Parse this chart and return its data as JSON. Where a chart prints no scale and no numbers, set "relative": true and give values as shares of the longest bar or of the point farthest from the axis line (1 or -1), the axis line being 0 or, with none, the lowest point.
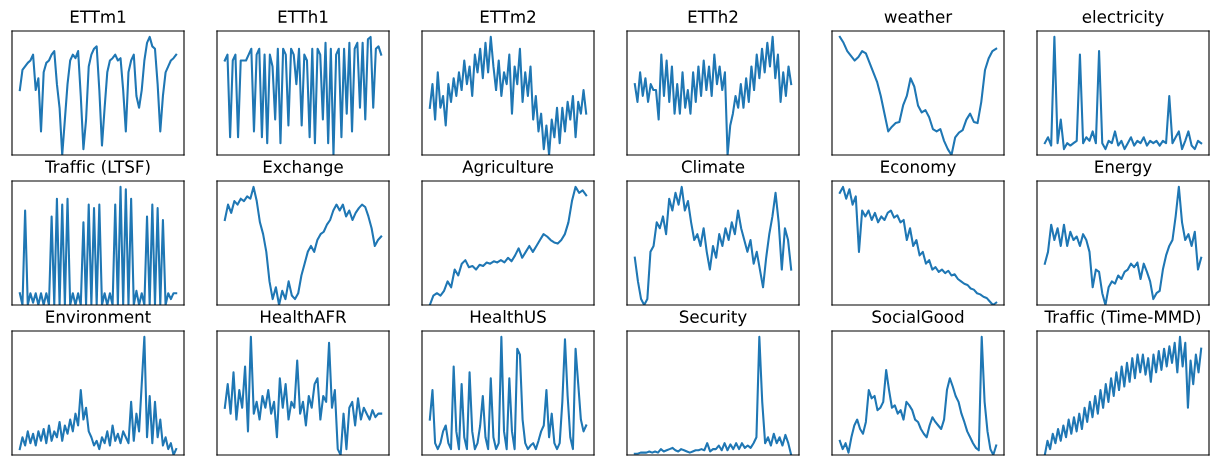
{
  "chart_data": [
    {
      "type": "line",
      "title": "ETTm1",
      "relative": true,
      "tick_labels": false,
      "color": "#1f77b4",
      "categories": [
        null,
        null,
        null,
        null,
        null,
        null,
        null,
        null,
        null,
        null,
        null,
        null,
        null,
        null,
        null,
        null,
        null,
        null,
        null,
        null,
        null,
        null,
        null,
        null,
        null,
        null,
        null,
        null,
        null,
        null,
        null,
        null,
        null,
        null,
        null,
        null,
        null,
        null,
        null,
        null,
        null,
        null,
        null,
        null,
        null,
        null,
        null,
        null,
        null,
        null,
        null,
        null,
        null,
        null,
        null,
        null,
        null,
        null,
        null,
        null
      ],
      "values": [
        0.55,
        0.72,
        0.75,
        0.78,
        0.8,
        0.85,
        0.55,
        0.65,
        0.2,
        0.7,
        0.78,
        0.8,
        0.85,
        0.88,
        0.6,
        0.4,
        0.0,
        0.3,
        0.6,
        0.8,
        0.85,
        0.82,
        0.88,
        0.5,
        0.05,
        0.3,
        0.75,
        0.85,
        0.9,
        0.92,
        0.55,
        0.08,
        0.4,
        0.7,
        0.8,
        0.82,
        0.85,
        0.8,
        0.82,
        0.55,
        0.2,
        0.7,
        0.8,
        0.85,
        0.5,
        0.4,
        0.55,
        0.8,
        0.95,
        1.0,
        0.92,
        0.9,
        0.6,
        0.2,
        0.5,
        0.7,
        0.75,
        0.8,
        0.82,
        0.85
      ]
    },
    {
      "type": "line",
      "title": "ETTh1",
      "relative": true,
      "tick_labels": false,
      "color": "#1f77b4",
      "categories": [
        null,
        null,
        null,
        null,
        null,
        null,
        null,
        null,
        null,
        null,
        null,
        null,
        null,
        null,
        null,
        null,
        null,
        null,
        null,
        null,
        null,
        null,
        null,
        null,
        null,
        null,
        null,
        null,
        null,
        null,
        null,
        null,
        null,
        null,
        null,
        null,
        null,
        null,
        null,
        null,
        null,
        null,
        null,
        null,
        null,
        null,
        null,
        null,
        null,
        null,
        null,
        null,
        null,
        null,
        null,
        null,
        null,
        null,
        null,
        null
      ],
      "values": [
        0.8,
        0.85,
        0.15,
        0.8,
        0.85,
        0.15,
        0.8,
        0.8,
        0.8,
        0.85,
        0.9,
        0.2,
        0.85,
        0.9,
        0.15,
        0.85,
        0.1,
        0.85,
        0.75,
        0.3,
        0.9,
        0.1,
        0.9,
        0.85,
        0.25,
        0.9,
        0.85,
        0.6,
        0.9,
        0.25,
        0.85,
        0.8,
        0.15,
        0.9,
        0.1,
        0.9,
        0.85,
        0.3,
        0.95,
        0.1,
        0.9,
        0.0,
        0.85,
        0.9,
        0.15,
        0.9,
        0.35,
        0.95,
        0.2,
        0.9,
        0.95,
        0.4,
        0.95,
        0.3,
        0.98,
        1.0,
        0.4,
        0.9,
        0.92,
        0.85
      ]
    },
    {
      "type": "line",
      "title": "ETTm2",
      "relative": true,
      "tick_labels": false,
      "color": "#1f77b4",
      "categories": [
        null,
        null,
        null,
        null,
        null,
        null,
        null,
        null,
        null,
        null,
        null,
        null,
        null,
        null,
        null,
        null,
        null,
        null,
        null,
        null,
        null,
        null,
        null,
        null,
        null,
        null,
        null,
        null,
        null,
        null,
        null,
        null,
        null,
        null,
        null,
        null,
        null,
        null,
        null,
        null,
        null,
        null,
        null,
        null,
        null,
        null,
        null,
        null,
        null,
        null,
        null,
        null,
        null,
        null,
        null,
        null,
        null,
        null,
        null,
        null
      ],
      "values": [
        0.4,
        0.6,
        0.3,
        0.7,
        0.4,
        0.5,
        0.25,
        0.6,
        0.45,
        0.65,
        0.5,
        0.7,
        0.55,
        0.8,
        0.6,
        0.75,
        0.5,
        0.85,
        0.7,
        0.9,
        0.65,
        0.95,
        0.7,
        1.0,
        0.75,
        0.55,
        0.8,
        0.5,
        0.7,
        0.6,
        0.85,
        0.35,
        0.75,
        0.6,
        0.9,
        0.45,
        0.7,
        0.5,
        0.75,
        0.3,
        0.5,
        0.2,
        0.35,
        0.05,
        0.25,
        0.0,
        0.3,
        0.15,
        0.4,
        0.1,
        0.4,
        0.2,
        0.45,
        0.3,
        0.5,
        0.15,
        0.45,
        0.35,
        0.55,
        0.35
      ]
    },
    {
      "type": "line",
      "title": "ETTh2",
      "relative": true,
      "tick_labels": false,
      "color": "#1f77b4",
      "categories": [
        null,
        null,
        null,
        null,
        null,
        null,
        null,
        null,
        null,
        null,
        null,
        null,
        null,
        null,
        null,
        null,
        null,
        null,
        null,
        null,
        null,
        null,
        null,
        null,
        null,
        null,
        null,
        null,
        null,
        null,
        null,
        null,
        null,
        null,
        null,
        null,
        null,
        null,
        null,
        null,
        null,
        null,
        null,
        null,
        null,
        null,
        null,
        null,
        null,
        null,
        null,
        null,
        null,
        null,
        null,
        null,
        null,
        null,
        null,
        null
      ],
      "values": [
        0.6,
        0.45,
        0.7,
        0.5,
        0.65,
        0.45,
        0.6,
        0.55,
        0.55,
        0.3,
        0.85,
        0.5,
        0.8,
        0.45,
        0.75,
        0.35,
        0.6,
        0.35,
        0.7,
        0.4,
        0.55,
        0.35,
        0.7,
        0.45,
        0.75,
        0.5,
        0.8,
        0.55,
        0.75,
        0.5,
        0.85,
        0.6,
        0.75,
        0.55,
        0.7,
        0.0,
        0.25,
        0.35,
        0.5,
        0.4,
        0.6,
        0.4,
        0.65,
        0.45,
        0.75,
        0.55,
        0.85,
        0.65,
        0.9,
        0.7,
        0.95,
        0.75,
        1.0,
        0.65,
        0.85,
        0.45,
        0.7,
        0.5,
        0.75,
        0.6
      ]
    },
    {
      "type": "line",
      "title": "weather",
      "relative": true,
      "tick_labels": false,
      "color": "#1f77b4",
      "categories": [
        null,
        null,
        null,
        null,
        null,
        null,
        null,
        null,
        null,
        null,
        null,
        null,
        null,
        null,
        null,
        null,
        null,
        null,
        null,
        null,
        null,
        null,
        null,
        null,
        null,
        null,
        null,
        null,
        null,
        null,
        null,
        null,
        null,
        null,
        null,
        null,
        null,
        null,
        null,
        null,
        null,
        null,
        null
      ],
      "values": [
        1.0,
        0.95,
        0.88,
        0.84,
        0.8,
        0.83,
        0.88,
        0.86,
        0.78,
        0.7,
        0.62,
        0.5,
        0.35,
        0.2,
        0.24,
        0.27,
        0.28,
        0.42,
        0.5,
        0.65,
        0.58,
        0.42,
        0.36,
        0.38,
        0.32,
        0.22,
        0.2,
        0.22,
        0.12,
        0.05,
        0.0,
        0.15,
        0.19,
        0.21,
        0.3,
        0.35,
        0.28,
        0.27,
        0.45,
        0.72,
        0.82,
        0.88,
        0.9
      ]
    },
    {
      "type": "line",
      "title": "electricity",
      "relative": true,
      "tick_labels": false,
      "color": "#1f77b4",
      "categories": [
        null,
        null,
        null,
        null,
        null,
        null,
        null,
        null,
        null,
        null,
        null,
        null,
        null,
        null,
        null,
        null,
        null,
        null,
        null,
        null,
        null,
        null,
        null,
        null,
        null,
        null,
        null,
        null,
        null,
        null,
        null,
        null,
        null,
        null,
        null,
        null,
        null,
        null,
        null,
        null,
        null,
        null,
        null,
        null,
        null,
        null,
        null,
        null,
        null,
        null
      ],
      "values": [
        0.1,
        0.15,
        0.08,
        1.0,
        0.1,
        0.3,
        0.05,
        0.1,
        0.08,
        0.1,
        0.12,
        0.85,
        0.1,
        0.15,
        0.12,
        0.2,
        0.1,
        0.88,
        0.1,
        0.05,
        0.12,
        0.1,
        0.2,
        0.08,
        0.12,
        0.05,
        0.1,
        0.15,
        0.08,
        0.12,
        0.1,
        0.15,
        0.08,
        0.12,
        0.1,
        0.12,
        0.08,
        0.12,
        0.1,
        0.5,
        0.1,
        0.15,
        0.2,
        0.05,
        0.12,
        0.2,
        0.08,
        0.05,
        0.12,
        0.1
      ]
    },
    {
      "type": "line",
      "title": "Traffic (LTSF)",
      "relative": true,
      "tick_labels": false,
      "color": "#1f77b4",
      "categories": [
        null,
        null,
        null,
        null,
        null,
        null,
        null,
        null,
        null,
        null,
        null,
        null,
        null,
        null,
        null,
        null,
        null,
        null,
        null,
        null,
        null,
        null,
        null,
        null,
        null,
        null,
        null,
        null,
        null,
        null,
        null,
        null,
        null,
        null,
        null,
        null,
        null,
        null,
        null,
        null,
        null,
        null,
        null,
        null,
        null,
        null,
        null,
        null,
        null,
        null,
        null,
        null,
        null,
        null,
        null,
        null,
        null,
        null,
        null,
        null
      ],
      "values": [
        0.1,
        0.0,
        0.8,
        0.0,
        0.1,
        0.02,
        0.1,
        0.0,
        0.1,
        0.0,
        0.1,
        0.0,
        0.75,
        0.0,
        0.9,
        0.0,
        0.85,
        0.0,
        0.9,
        0.0,
        0.1,
        0.0,
        0.1,
        0.0,
        0.7,
        0.0,
        0.85,
        0.0,
        0.82,
        0.0,
        0.85,
        0.0,
        0.1,
        0.0,
        0.1,
        0.0,
        0.85,
        0.0,
        1.0,
        0.0,
        0.98,
        0.0,
        0.9,
        0.0,
        0.12,
        0.0,
        0.1,
        0.0,
        0.75,
        0.0,
        0.85,
        0.0,
        0.82,
        0.0,
        0.72,
        0.0,
        0.1,
        0.05,
        0.1,
        0.1
      ]
    },
    {
      "type": "line",
      "title": "Exchange",
      "relative": true,
      "tick_labels": false,
      "color": "#1f77b4",
      "categories": [
        null,
        null,
        null,
        null,
        null,
        null,
        null,
        null,
        null,
        null,
        null,
        null,
        null,
        null,
        null,
        null,
        null,
        null,
        null,
        null,
        null,
        null,
        null,
        null,
        null,
        null,
        null,
        null,
        null,
        null,
        null,
        null,
        null,
        null,
        null,
        null,
        null,
        null,
        null,
        null,
        null,
        null,
        null,
        null,
        null,
        null,
        null,
        null,
        null,
        null
      ],
      "values": [
        0.72,
        0.85,
        0.78,
        0.88,
        0.85,
        0.9,
        0.88,
        0.92,
        0.9,
        1.0,
        0.88,
        0.7,
        0.6,
        0.45,
        0.2,
        0.05,
        0.15,
        0.0,
        0.12,
        0.05,
        0.2,
        0.08,
        0.05,
        0.1,
        0.25,
        0.35,
        0.45,
        0.5,
        0.45,
        0.55,
        0.6,
        0.62,
        0.68,
        0.72,
        0.8,
        0.85,
        0.8,
        0.85,
        0.75,
        0.8,
        0.72,
        0.78,
        0.82,
        0.85,
        0.83,
        0.75,
        0.65,
        0.5,
        0.55,
        0.58
      ]
    },
    {
      "type": "line",
      "title": "Agriculture",
      "relative": true,
      "tick_labels": false,
      "color": "#1f77b4",
      "categories": [
        null,
        null,
        null,
        null,
        null,
        null,
        null,
        null,
        null,
        null,
        null,
        null,
        null,
        null,
        null,
        null,
        null,
        null,
        null,
        null,
        null,
        null,
        null,
        null,
        null,
        null,
        null,
        null,
        null,
        null,
        null,
        null,
        null,
        null,
        null,
        null,
        null,
        null,
        null,
        null,
        null,
        null,
        null,
        null,
        null
      ],
      "values": [
        0.0,
        0.08,
        0.1,
        0.08,
        0.12,
        0.2,
        0.15,
        0.3,
        0.25,
        0.35,
        0.38,
        0.32,
        0.33,
        0.3,
        0.34,
        0.33,
        0.36,
        0.35,
        0.37,
        0.36,
        0.38,
        0.36,
        0.4,
        0.37,
        0.42,
        0.48,
        0.4,
        0.45,
        0.5,
        0.45,
        0.5,
        0.55,
        0.6,
        0.58,
        0.55,
        0.53,
        0.52,
        0.55,
        0.6,
        0.7,
        0.88,
        1.0,
        0.95,
        0.97,
        0.93
      ]
    },
    {
      "type": "line",
      "title": "Climate",
      "relative": true,
      "tick_labels": false,
      "color": "#1f77b4",
      "categories": [
        null,
        null,
        null,
        null,
        null,
        null,
        null,
        null,
        null,
        null,
        null,
        null,
        null,
        null,
        null,
        null,
        null,
        null,
        null,
        null,
        null,
        null,
        null,
        null,
        null,
        null,
        null,
        null,
        null,
        null,
        null,
        null,
        null,
        null,
        null,
        null,
        null,
        null,
        null,
        null,
        null,
        null,
        null,
        null,
        null,
        null,
        null,
        null,
        null,
        null,
        null
      ],
      "values": [
        0.4,
        0.2,
        0.05,
        0.0,
        0.05,
        0.45,
        0.5,
        0.7,
        0.65,
        0.75,
        0.6,
        0.9,
        0.8,
        0.95,
        0.85,
        1.0,
        0.8,
        0.88,
        0.7,
        0.55,
        0.6,
        0.5,
        0.65,
        0.45,
        0.3,
        0.5,
        0.4,
        0.6,
        0.5,
        0.65,
        0.55,
        0.7,
        0.6,
        0.8,
        0.65,
        0.55,
        0.45,
        0.55,
        0.35,
        0.45,
        0.3,
        0.15,
        0.4,
        0.6,
        0.75,
        0.95,
        0.7,
        0.3,
        0.65,
        0.55,
        0.3
      ]
    },
    {
      "type": "line",
      "title": "Economy",
      "relative": true,
      "tick_labels": false,
      "color": "#1f77b4",
      "categories": [
        null,
        null,
        null,
        null,
        null,
        null,
        null,
        null,
        null,
        null,
        null,
        null,
        null,
        null,
        null,
        null,
        null,
        null,
        null,
        null,
        null,
        null,
        null,
        null,
        null,
        null,
        null,
        null,
        null,
        null,
        null,
        null,
        null,
        null,
        null,
        null,
        null,
        null,
        null,
        null,
        null,
        null,
        null,
        null,
        null,
        null,
        null,
        null,
        null,
        null
      ],
      "values": [
        0.95,
        1.0,
        0.9,
        0.98,
        0.85,
        0.92,
        0.45,
        0.8,
        0.75,
        0.8,
        0.72,
        0.78,
        0.7,
        0.75,
        0.72,
        0.78,
        0.8,
        0.74,
        0.76,
        0.7,
        0.72,
        0.55,
        0.65,
        0.5,
        0.55,
        0.42,
        0.45,
        0.35,
        0.38,
        0.3,
        0.32,
        0.28,
        0.3,
        0.27,
        0.29,
        0.25,
        0.26,
        0.22,
        0.2,
        0.18,
        0.17,
        0.14,
        0.13,
        0.1,
        0.09,
        0.07,
        0.06,
        0.03,
        0.0,
        0.02
      ]
    },
    {
      "type": "line",
      "title": "Energy",
      "relative": true,
      "tick_labels": false,
      "color": "#1f77b4",
      "categories": [
        null,
        null,
        null,
        null,
        null,
        null,
        null,
        null,
        null,
        null,
        null,
        null,
        null,
        null,
        null,
        null,
        null,
        null,
        null,
        null,
        null,
        null,
        null,
        null,
        null,
        null,
        null,
        null,
        null,
        null,
        null,
        null,
        null,
        null,
        null,
        null,
        null,
        null,
        null,
        null,
        null,
        null,
        null,
        null,
        null,
        null,
        null,
        null,
        null,
        null
      ],
      "values": [
        0.35,
        0.45,
        0.68,
        0.55,
        0.65,
        0.5,
        0.68,
        0.5,
        0.62,
        0.55,
        0.58,
        0.5,
        0.6,
        0.55,
        0.45,
        0.15,
        0.3,
        0.28,
        0.1,
        0.0,
        0.15,
        0.2,
        0.18,
        0.25,
        0.22,
        0.28,
        0.3,
        0.35,
        0.32,
        0.36,
        0.22,
        0.35,
        0.28,
        0.2,
        0.05,
        0.1,
        0.12,
        0.3,
        0.42,
        0.5,
        0.55,
        0.75,
        1.0,
        0.7,
        0.55,
        0.6,
        0.5,
        0.62,
        0.3,
        0.4
      ]
    },
    {
      "type": "line",
      "title": "Environment",
      "relative": true,
      "tick_labels": false,
      "color": "#1f77b4",
      "categories": [
        null,
        null,
        null,
        null,
        null,
        null,
        null,
        null,
        null,
        null,
        null,
        null,
        null,
        null,
        null,
        null,
        null,
        null,
        null,
        null,
        null,
        null,
        null,
        null,
        null,
        null,
        null,
        null,
        null,
        null,
        null,
        null,
        null,
        null,
        null,
        null,
        null,
        null,
        null,
        null,
        null,
        null,
        null,
        null,
        null,
        null,
        null,
        null,
        null,
        null,
        null,
        null,
        null,
        null,
        null,
        null,
        null,
        null,
        null,
        null
      ],
      "values": [
        0.05,
        0.15,
        0.08,
        0.2,
        0.1,
        0.18,
        0.08,
        0.2,
        0.12,
        0.22,
        0.1,
        0.25,
        0.12,
        0.2,
        0.15,
        0.28,
        0.12,
        0.25,
        0.18,
        0.3,
        0.2,
        0.35,
        0.25,
        0.55,
        0.3,
        0.4,
        0.2,
        0.15,
        0.08,
        0.12,
        0.05,
        0.15,
        0.1,
        0.2,
        0.08,
        0.25,
        0.12,
        0.18,
        0.1,
        0.2,
        0.15,
        0.1,
        0.45,
        0.12,
        0.35,
        0.2,
        0.6,
        1.0,
        0.15,
        0.5,
        0.1,
        0.45,
        0.15,
        0.3,
        0.08,
        0.15,
        0.05,
        0.1,
        0.0,
        0.05
      ]
    },
    {
      "type": "line",
      "title": "HealthAFR",
      "relative": true,
      "tick_labels": false,
      "color": "#1f77b4",
      "categories": [
        null,
        null,
        null,
        null,
        null,
        null,
        null,
        null,
        null,
        null,
        null,
        null,
        null,
        null,
        null,
        null,
        null,
        null,
        null,
        null,
        null,
        null,
        null,
        null,
        null,
        null,
        null,
        null,
        null,
        null,
        null,
        null,
        null,
        null,
        null,
        null,
        null,
        null,
        null,
        null,
        null,
        null,
        null,
        null,
        null,
        null,
        null,
        null,
        null,
        null,
        null,
        null,
        null,
        null,
        null
      ],
      "values": [
        0.4,
        0.6,
        0.35,
        0.7,
        0.3,
        0.55,
        0.4,
        0.75,
        0.2,
        1.0,
        0.35,
        0.45,
        0.3,
        0.5,
        0.4,
        0.55,
        0.35,
        0.45,
        0.15,
        0.65,
        0.4,
        0.6,
        0.3,
        0.45,
        0.4,
        0.8,
        0.35,
        0.45,
        0.25,
        0.5,
        0.4,
        0.6,
        0.65,
        0.3,
        0.5,
        0.45,
        0.95,
        0.4,
        0.55,
        0.05,
        0.0,
        0.35,
        0.05,
        0.4,
        0.45,
        0.25,
        0.48,
        0.3,
        0.4,
        0.35,
        0.3,
        0.38,
        0.32,
        0.35,
        0.35
      ]
    },
    {
      "type": "line",
      "title": "HealthUS",
      "relative": true,
      "tick_labels": false,
      "color": "#1f77b4",
      "categories": [
        null,
        null,
        null,
        null,
        null,
        null,
        null,
        null,
        null,
        null,
        null,
        null,
        null,
        null,
        null,
        null,
        null,
        null,
        null,
        null,
        null,
        null,
        null,
        null,
        null,
        null,
        null,
        null,
        null,
        null,
        null,
        null,
        null,
        null,
        null,
        null,
        null,
        null,
        null,
        null,
        null,
        null,
        null,
        null,
        null,
        null,
        null,
        null,
        null,
        null,
        null,
        null,
        null,
        null,
        null,
        null,
        null,
        null,
        null,
        null
      ],
      "values": [
        0.3,
        0.55,
        0.1,
        0.05,
        0.1,
        0.2,
        0.25,
        0.1,
        0.05,
        0.75,
        0.2,
        0.05,
        0.6,
        0.15,
        0.05,
        0.7,
        0.2,
        0.05,
        0.1,
        0.25,
        0.5,
        0.15,
        0.05,
        0.65,
        0.15,
        0.05,
        0.1,
        1.0,
        0.2,
        0.05,
        0.65,
        0.2,
        0.05,
        0.9,
        0.85,
        0.3,
        0.1,
        0.05,
        0.08,
        0.1,
        0.05,
        0.12,
        0.2,
        0.25,
        0.55,
        0.15,
        0.35,
        0.1,
        0.05,
        0.1,
        0.45,
        0.98,
        0.5,
        0.15,
        0.05,
        0.9,
        0.6,
        0.3,
        0.2,
        0.25
      ]
    },
    {
      "type": "line",
      "title": "Security",
      "relative": true,
      "tick_labels": false,
      "color": "#1f77b4",
      "categories": [
        null,
        null,
        null,
        null,
        null,
        null,
        null,
        null,
        null,
        null,
        null,
        null,
        null,
        null,
        null,
        null,
        null,
        null,
        null,
        null,
        null,
        null,
        null,
        null,
        null,
        null,
        null,
        null,
        null,
        null,
        null,
        null,
        null,
        null,
        null,
        null,
        null,
        null,
        null,
        null,
        null,
        null,
        null,
        null,
        null,
        null,
        null,
        null,
        null,
        null,
        null,
        null,
        null,
        null,
        null
      ],
      "values": [
        0.01,
        0.01,
        0.02,
        0.02,
        0.02,
        0.03,
        0.02,
        0.03,
        0.02,
        0.05,
        0.03,
        0.04,
        0.05,
        0.06,
        0.04,
        0.03,
        0.05,
        0.04,
        0.03,
        0.02,
        0.03,
        0.04,
        0.04,
        0.05,
        0.04,
        0.1,
        0.03,
        0.05,
        0.05,
        0.08,
        0.04,
        0.1,
        0.04,
        0.09,
        0.05,
        0.1,
        0.05,
        0.1,
        0.06,
        0.08,
        0.06,
        0.1,
        0.15,
        1.0,
        0.45,
        0.1,
        0.15,
        0.08,
        0.18,
        0.1,
        0.15,
        0.08,
        0.17,
        0.1,
        0.0
      ]
    },
    {
      "type": "line",
      "title": "SocialGood",
      "relative": true,
      "tick_labels": false,
      "color": "#1f77b4",
      "categories": [
        null,
        null,
        null,
        null,
        null,
        null,
        null,
        null,
        null,
        null,
        null,
        null,
        null,
        null,
        null,
        null,
        null,
        null,
        null,
        null,
        null,
        null,
        null,
        null,
        null,
        null,
        null,
        null,
        null,
        null,
        null,
        null,
        null,
        null,
        null,
        null,
        null,
        null,
        null,
        null,
        null,
        null,
        null,
        null,
        null,
        null,
        null,
        null,
        null,
        null,
        null,
        null,
        null,
        null,
        null
      ],
      "values": [
        0.12,
        0.05,
        0.1,
        0.02,
        0.15,
        0.25,
        0.3,
        0.22,
        0.18,
        0.28,
        0.55,
        0.48,
        0.5,
        0.38,
        0.4,
        0.45,
        0.72,
        0.55,
        0.4,
        0.42,
        0.35,
        0.38,
        0.3,
        0.45,
        0.42,
        0.38,
        0.3,
        0.28,
        0.22,
        0.18,
        0.15,
        0.25,
        0.32,
        0.28,
        0.25,
        0.22,
        0.3,
        0.55,
        0.65,
        0.58,
        0.5,
        0.45,
        0.35,
        0.28,
        0.2,
        0.15,
        0.1,
        0.06,
        0.04,
        1.0,
        0.45,
        0.2,
        0.05,
        0.0,
        0.08
      ]
    },
    {
      "type": "line",
      "title": "Traffic (Time-MMD)",
      "relative": true,
      "tick_labels": false,
      "color": "#1f77b4",
      "categories": [
        null,
        null,
        null,
        null,
        null,
        null,
        null,
        null,
        null,
        null,
        null,
        null,
        null,
        null,
        null,
        null,
        null,
        null,
        null,
        null,
        null,
        null,
        null,
        null,
        null,
        null,
        null,
        null,
        null,
        null,
        null,
        null,
        null,
        null,
        null,
        null,
        null,
        null,
        null,
        null,
        null,
        null,
        null,
        null,
        null,
        null,
        null,
        null,
        null,
        null,
        null,
        null,
        null,
        null,
        null,
        null,
        null,
        null,
        null,
        null
      ],
      "values": [
        0.0,
        0.12,
        0.05,
        0.18,
        0.1,
        0.22,
        0.12,
        0.25,
        0.15,
        0.3,
        0.18,
        0.32,
        0.2,
        0.35,
        0.22,
        0.4,
        0.28,
        0.45,
        0.32,
        0.5,
        0.35,
        0.55,
        0.4,
        0.6,
        0.45,
        0.65,
        0.5,
        0.7,
        0.55,
        0.75,
        0.58,
        0.78,
        0.62,
        0.82,
        0.65,
        0.85,
        0.7,
        0.85,
        0.68,
        0.82,
        0.62,
        0.85,
        0.7,
        0.88,
        0.72,
        0.9,
        0.75,
        0.92,
        0.78,
        0.95,
        0.7,
        1.0,
        0.75,
        0.95,
        0.4,
        0.8,
        0.6,
        0.85,
        0.7,
        0.9
      ]
    }
  ]
}
